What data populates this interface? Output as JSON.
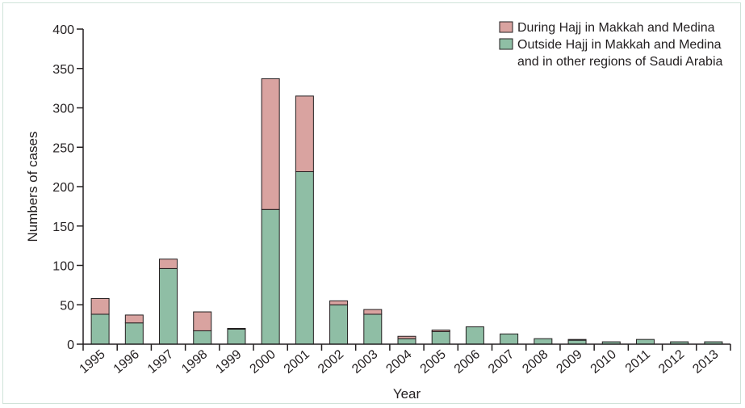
{
  "chart_data": {
    "type": "bar",
    "stacked": true,
    "xlabel": "Year",
    "ylabel": "Numbers of cases",
    "ylim": [
      0,
      400
    ],
    "yticks": [
      0,
      50,
      100,
      150,
      200,
      250,
      300,
      350,
      400
    ],
    "grid": false,
    "legend_position": "top-right",
    "categories": [
      "1995",
      "1996",
      "1997",
      "1998",
      "1999",
      "2000",
      "2001",
      "2002",
      "2003",
      "2004",
      "2005",
      "2006",
      "2007",
      "2008",
      "2009",
      "2010",
      "2011",
      "2012",
      "2013"
    ],
    "series": [
      {
        "name": "Outside Hajj in Makkah and Medina and in other regions of Saudi Arabia",
        "legend_lines": [
          "Outside Hajj in Makkah and Medina",
          "and in other regions of Saudi Arabia"
        ],
        "color": "#8fbea5",
        "values": [
          38,
          27,
          96,
          17,
          19,
          171,
          219,
          50,
          38,
          7,
          16,
          22,
          13,
          7,
          5,
          3,
          6,
          3,
          3
        ]
      },
      {
        "name": "During Hajj in Makkah and Medina",
        "legend_lines": [
          "During Hajj in Makkah and Medina"
        ],
        "color": "#d9a3a0",
        "values": [
          20,
          10,
          12,
          24,
          1,
          166,
          96,
          5,
          6,
          3,
          2,
          0,
          0,
          0,
          1,
          0,
          0,
          0,
          0
        ]
      }
    ]
  }
}
